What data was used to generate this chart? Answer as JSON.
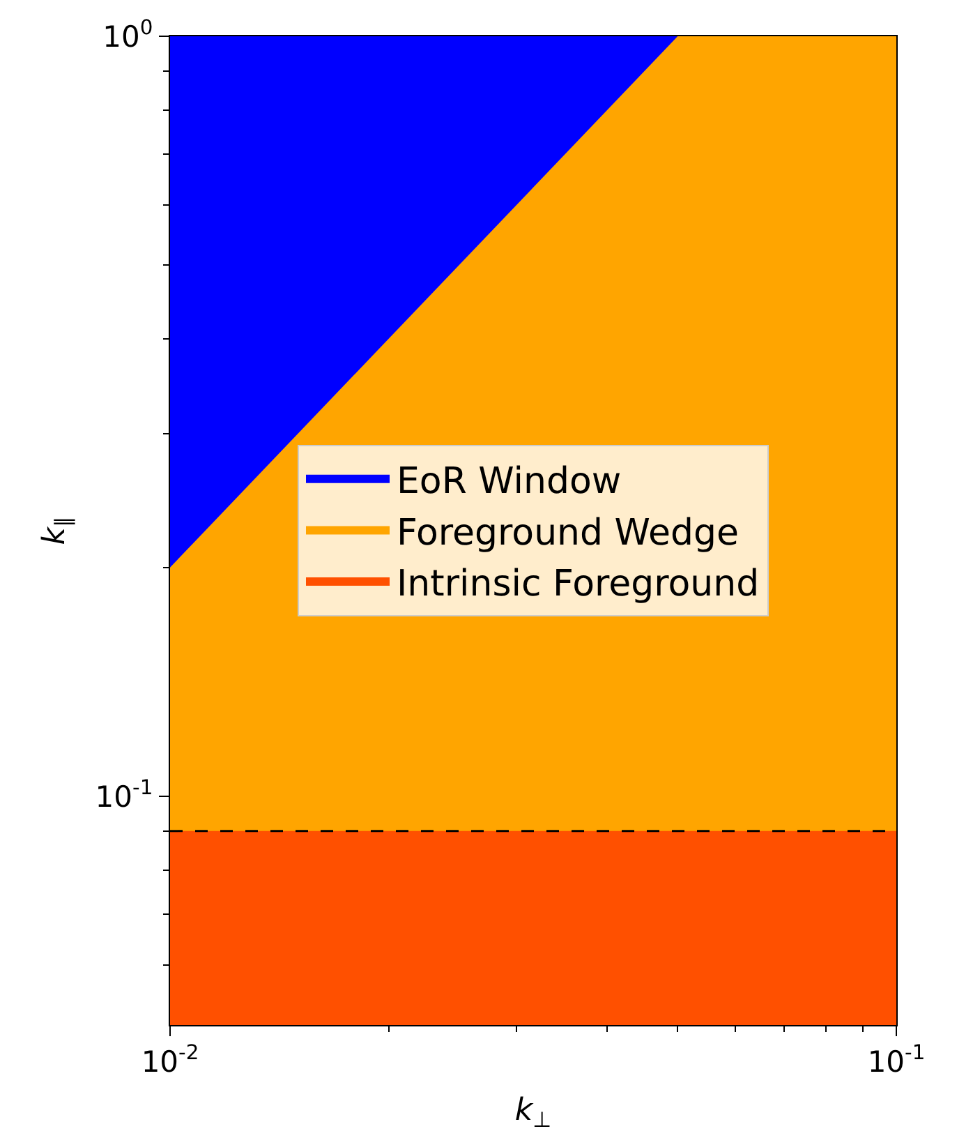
{
  "chart_data": {
    "type": "area",
    "xlabel": "k$_{⊥}$",
    "ylabel": "k$_{∥}$",
    "log": "xy",
    "legend": "center",
    "xlim": [
      0.01,
      0.1
    ],
    "ylim": [
      0.05,
      1
    ],
    "xticks": [
      {
        "value": 0.01,
        "label": "10$^{-2}$"
      },
      {
        "value": 0.02,
        "label": null
      },
      {
        "value": 0.03,
        "label": null
      },
      {
        "value": 0.04,
        "label": null
      },
      {
        "value": 0.05,
        "label": null
      },
      {
        "value": 0.06,
        "label": null
      },
      {
        "value": 0.07,
        "label": null
      },
      {
        "value": 0.08,
        "label": null
      },
      {
        "value": 0.09,
        "label": null
      },
      {
        "value": 0.1,
        "label": "10$^{-1}$"
      }
    ],
    "yticks": [
      {
        "value": 0.06,
        "label": null
      },
      {
        "value": 0.07,
        "label": null
      },
      {
        "value": 0.08,
        "label": null
      },
      {
        "value": 0.09,
        "label": null
      },
      {
        "value": 0.1,
        "label": "10$^{-1}$"
      },
      {
        "value": 0.2,
        "label": null
      },
      {
        "value": 0.3,
        "label": null
      },
      {
        "value": 0.4,
        "label": null
      },
      {
        "value": 0.5,
        "label": null
      },
      {
        "value": 0.6,
        "label": null
      },
      {
        "value": 0.7,
        "label": null
      },
      {
        "value": 0.8,
        "label": null
      },
      {
        "value": 0.9,
        "label": null
      },
      {
        "value": 1,
        "label": "10$^{0}$"
      }
    ],
    "series": [
      {
        "name": "EoR Window",
        "color": "#0000ff",
        "x": [
          0.01,
          0.05
        ],
        "values": [
          1,
          1
        ]
      },
      {
        "name": "Foreground Wedge",
        "color": "#ffa500",
        "x": [
          0.01,
          0.05,
          0.1
        ],
        "values": [
          0.2,
          1,
          1
        ]
      },
      {
        "name": "Intrinsic Foreground",
        "color": "#ff5000",
        "x": [
          0.01,
          0.1
        ],
        "values": [
          0.09,
          0.09
        ]
      }
    ],
    "ref_lines": [
      {
        "axis": "y",
        "value": 0.09,
        "label": null,
        "color": "#000000",
        "line_style": "dashed"
      }
    ]
  }
}
